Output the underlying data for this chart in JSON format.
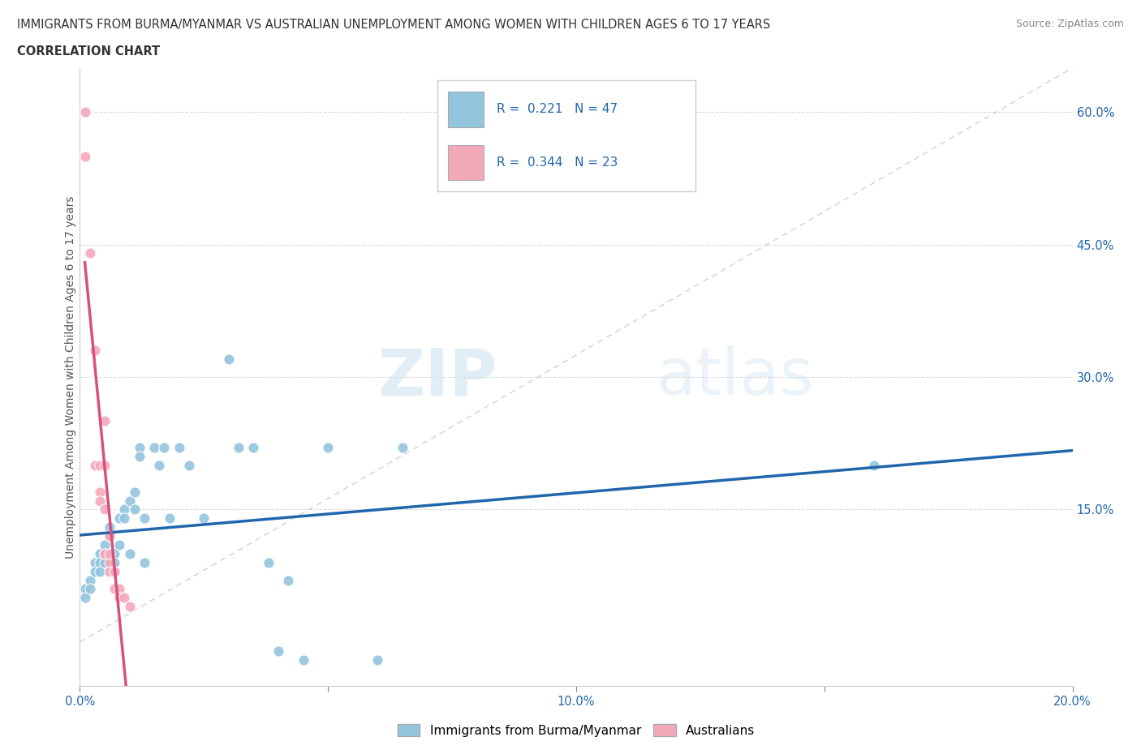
{
  "title_line1": "IMMIGRANTS FROM BURMA/MYANMAR VS AUSTRALIAN UNEMPLOYMENT AMONG WOMEN WITH CHILDREN AGES 6 TO 17 YEARS",
  "title_line2": "CORRELATION CHART",
  "source_text": "Source: ZipAtlas.com",
  "ylabel": "Unemployment Among Women with Children Ages 6 to 17 years",
  "xlim": [
    0.0,
    0.2
  ],
  "ylim": [
    -0.05,
    0.65
  ],
  "xtick_positions": [
    0.0,
    0.05,
    0.1,
    0.15,
    0.2
  ],
  "xtick_labels": [
    "0.0%",
    "",
    "10.0%",
    "",
    "20.0%"
  ],
  "ytick_vals_right": [
    0.15,
    0.3,
    0.45,
    0.6
  ],
  "ytick_labels_right": [
    "15.0%",
    "30.0%",
    "45.0%",
    "60.0%"
  ],
  "r_blue": 0.221,
  "n_blue": 47,
  "r_pink": 0.344,
  "n_pink": 23,
  "watermark_zip": "ZIP",
  "watermark_atlas": "atlas",
  "legend_label_blue": "Immigrants from Burma/Myanmar",
  "legend_label_pink": "Australians",
  "blue_color": "#92c5de",
  "pink_color": "#f4a9bb",
  "blue_line_color": "#2166ac",
  "pink_line_color": "#d6517d",
  "diag_color": "#cccccc",
  "blue_scatter": [
    [
      0.001,
      0.06
    ],
    [
      0.001,
      0.05
    ],
    [
      0.002,
      0.07
    ],
    [
      0.002,
      0.06
    ],
    [
      0.003,
      0.09
    ],
    [
      0.003,
      0.08
    ],
    [
      0.004,
      0.1
    ],
    [
      0.004,
      0.09
    ],
    [
      0.004,
      0.08
    ],
    [
      0.005,
      0.11
    ],
    [
      0.005,
      0.1
    ],
    [
      0.005,
      0.09
    ],
    [
      0.006,
      0.13
    ],
    [
      0.006,
      0.12
    ],
    [
      0.006,
      0.08
    ],
    [
      0.007,
      0.1
    ],
    [
      0.007,
      0.09
    ],
    [
      0.008,
      0.14
    ],
    [
      0.008,
      0.11
    ],
    [
      0.009,
      0.15
    ],
    [
      0.009,
      0.14
    ],
    [
      0.01,
      0.16
    ],
    [
      0.01,
      0.1
    ],
    [
      0.011,
      0.17
    ],
    [
      0.011,
      0.15
    ],
    [
      0.012,
      0.22
    ],
    [
      0.012,
      0.21
    ],
    [
      0.013,
      0.14
    ],
    [
      0.013,
      0.09
    ],
    [
      0.015,
      0.22
    ],
    [
      0.016,
      0.2
    ],
    [
      0.017,
      0.22
    ],
    [
      0.018,
      0.14
    ],
    [
      0.02,
      0.22
    ],
    [
      0.022,
      0.2
    ],
    [
      0.025,
      0.14
    ],
    [
      0.03,
      0.32
    ],
    [
      0.032,
      0.22
    ],
    [
      0.035,
      0.22
    ],
    [
      0.038,
      0.09
    ],
    [
      0.04,
      -0.01
    ],
    [
      0.042,
      0.07
    ],
    [
      0.045,
      -0.02
    ],
    [
      0.05,
      0.22
    ],
    [
      0.06,
      -0.02
    ],
    [
      0.065,
      0.22
    ],
    [
      0.16,
      0.2
    ]
  ],
  "pink_scatter": [
    [
      0.001,
      0.6
    ],
    [
      0.001,
      0.55
    ],
    [
      0.002,
      0.44
    ],
    [
      0.003,
      0.33
    ],
    [
      0.003,
      0.2
    ],
    [
      0.004,
      0.2
    ],
    [
      0.004,
      0.17
    ],
    [
      0.004,
      0.16
    ],
    [
      0.005,
      0.25
    ],
    [
      0.005,
      0.2
    ],
    [
      0.005,
      0.15
    ],
    [
      0.005,
      0.1
    ],
    [
      0.006,
      0.09
    ],
    [
      0.006,
      0.08
    ],
    [
      0.006,
      0.12
    ],
    [
      0.006,
      0.1
    ],
    [
      0.007,
      0.08
    ],
    [
      0.007,
      0.08
    ],
    [
      0.007,
      0.06
    ],
    [
      0.008,
      0.06
    ],
    [
      0.008,
      0.05
    ],
    [
      0.009,
      0.05
    ],
    [
      0.01,
      0.04
    ]
  ],
  "blue_trend": [
    0.0,
    0.2,
    0.09,
    0.2
  ],
  "pink_trend_x": [
    0.001,
    0.009
  ]
}
